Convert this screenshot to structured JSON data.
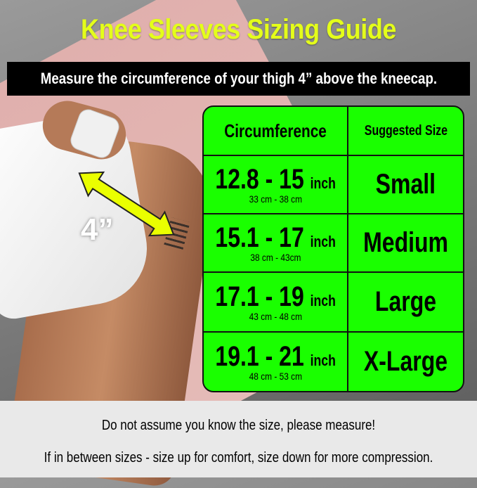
{
  "title": "Knee Sleeves Sizing Guide",
  "instruction": "Measure the circumference of your thigh 4” above the kneecap.",
  "measurement_label": "4”",
  "colors": {
    "title": "#e4ff1a",
    "table": "#1aff00",
    "arrow": "#eaff00"
  },
  "table": {
    "headers": [
      "Circumference",
      "Suggested Size"
    ],
    "rows": [
      {
        "inch": "12.8 - 15",
        "unit": "inch",
        "cm": "33 cm - 38 cm",
        "size": "Small"
      },
      {
        "inch": "15.1 - 17",
        "unit": "inch",
        "cm": "38 cm - 43cm",
        "size": "Medium"
      },
      {
        "inch": "17.1 - 19",
        "unit": "inch",
        "cm": "43 cm - 48 cm",
        "size": "Large"
      },
      {
        "inch": "19.1 - 21",
        "unit": "inch",
        "cm": "48 cm - 53 cm",
        "size": "X-Large"
      }
    ]
  },
  "footer": {
    "line1": "Do not assume you know the size, please measure!",
    "line2": "If in between sizes - size up for comfort, size down for more compression."
  }
}
